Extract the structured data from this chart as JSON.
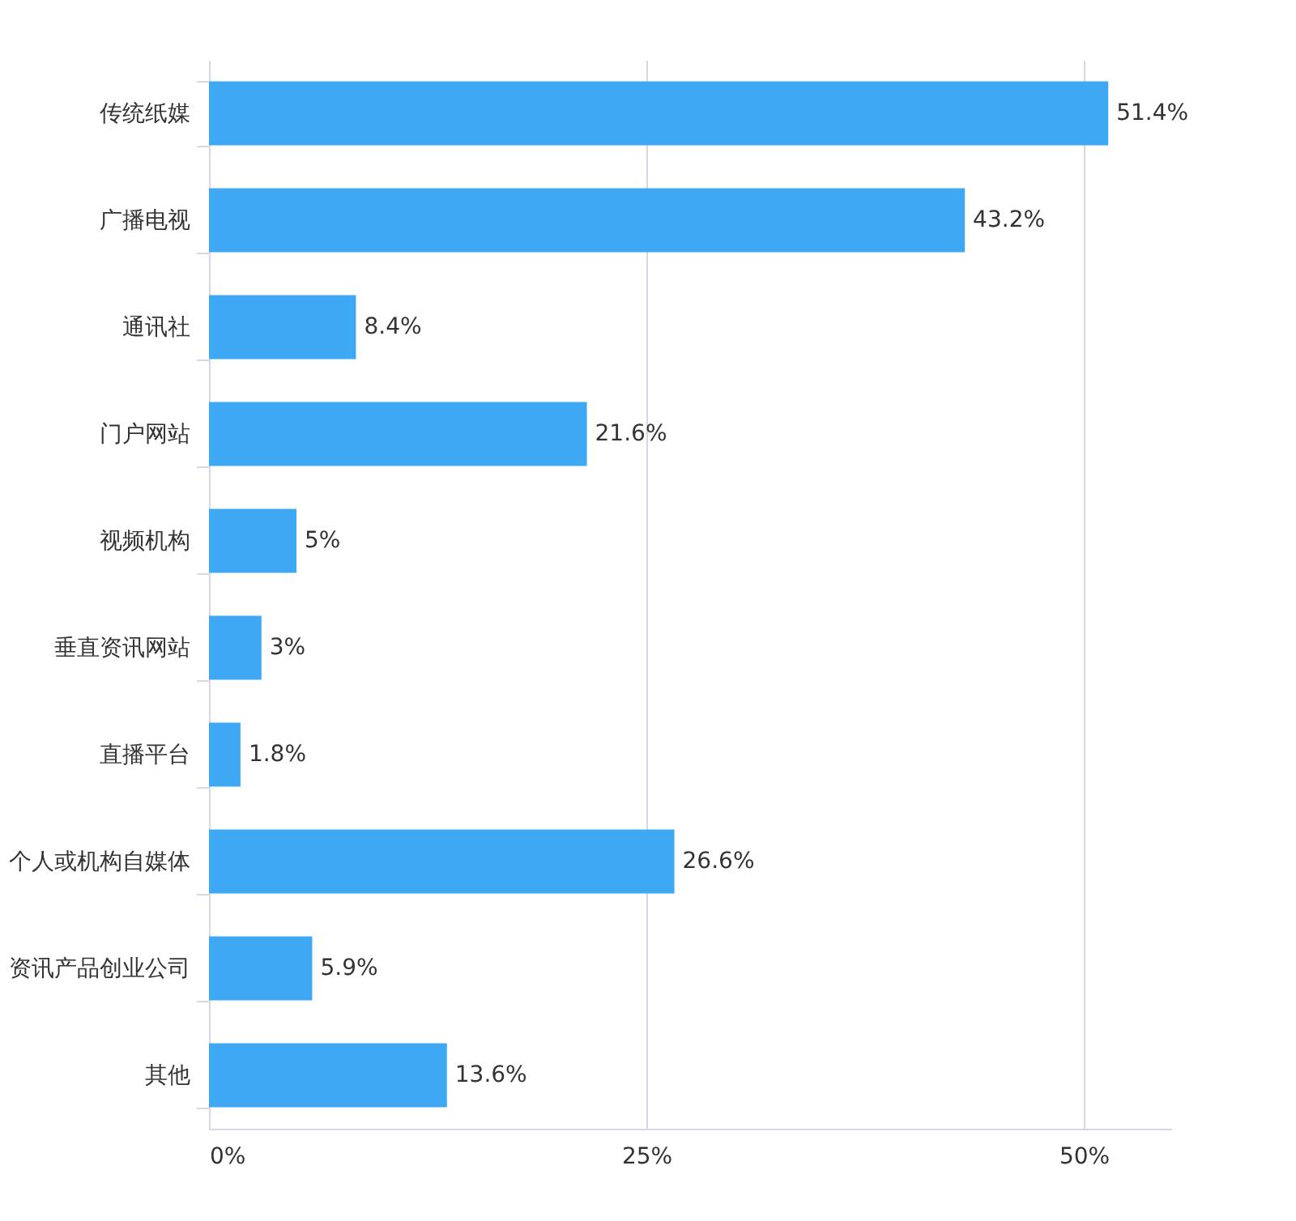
{
  "chart_data": {
    "type": "bar",
    "orientation": "horizontal",
    "categories": [
      "传统纸媒",
      "广播电视",
      "通讯社",
      "门户网站",
      "视频机构",
      "垂直资讯网站",
      "直播平台",
      "个人或机构自媒体",
      "资讯产品创业公司",
      "其他"
    ],
    "values": [
      51.4,
      43.2,
      8.4,
      21.6,
      5,
      3,
      1.8,
      26.6,
      5.9,
      13.6
    ],
    "value_labels": [
      "51.4%",
      "43.2%",
      "8.4%",
      "21.6%",
      "5%",
      "3%",
      "1.8%",
      "26.6%",
      "5.9%",
      "13.6%"
    ],
    "color": "#3ea8f4",
    "xlim": [
      0,
      55
    ],
    "xticks": [
      {
        "value": 0,
        "label": "0%"
      },
      {
        "value": 25,
        "label": "25%"
      },
      {
        "value": 50,
        "label": "50%"
      }
    ],
    "grid": "x"
  }
}
